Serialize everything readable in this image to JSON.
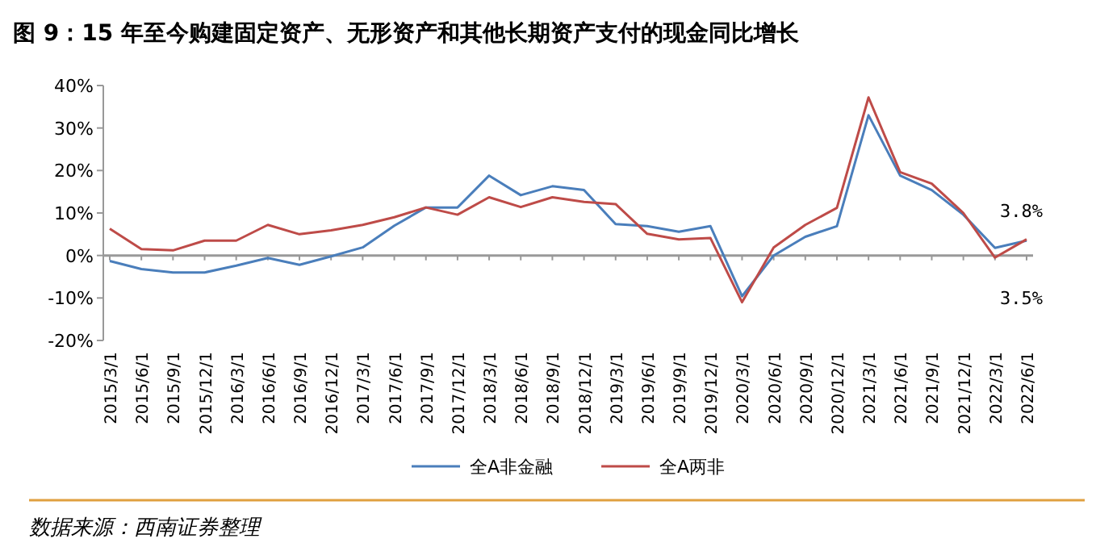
{
  "chart_data": {
    "type": "line",
    "title": "图 9：15 年至今购建固定资产、无形资产和其他长期资产支付的现金同比增长",
    "categories": [
      "2015/3/1",
      "2015/6/1",
      "2015/9/1",
      "2015/12/1",
      "2016/3/1",
      "2016/6/1",
      "2016/9/1",
      "2016/12/1",
      "2017/3/1",
      "2017/6/1",
      "2017/9/1",
      "2017/12/1",
      "2018/3/1",
      "2018/6/1",
      "2018/9/1",
      "2018/12/1",
      "2019/3/1",
      "2019/6/1",
      "2019/9/1",
      "2019/12/1",
      "2020/3/1",
      "2020/6/1",
      "2020/9/1",
      "2020/12/1",
      "2021/3/1",
      "2021/6/1",
      "2021/9/1",
      "2021/12/1",
      "2022/3/1",
      "2022/6/1"
    ],
    "series": [
      {
        "name": "全A非金融",
        "color": "#4a7ebb",
        "values": [
          -1.3,
          -3.2,
          -4,
          -4,
          -2.4,
          -0.6,
          -2.2,
          -0.2,
          1.9,
          7,
          11.3,
          11.3,
          18.8,
          14.2,
          16.3,
          15.4,
          7.4,
          6.9,
          5.6,
          6.9,
          -9.6,
          0,
          4.4,
          6.9,
          33,
          18.8,
          15.4,
          9.6,
          1.8,
          3.5
        ]
      },
      {
        "name": "全A两非",
        "color": "#be4b48",
        "values": [
          6.3,
          1.5,
          1.2,
          3.5,
          3.5,
          7.2,
          5,
          5.9,
          7.2,
          9,
          11.3,
          9.6,
          13.7,
          11.4,
          13.7,
          12.6,
          12.1,
          5.1,
          3.8,
          4.1,
          -11,
          1.9,
          7.2,
          11.2,
          37.2,
          19.6,
          16.9,
          10,
          -0.5,
          3.8
        ]
      }
    ],
    "ylim": [
      -20,
      40
    ],
    "yticks": [
      {
        "value": -20,
        "label": "-20%"
      },
      {
        "value": -10,
        "label": "-10%"
      },
      {
        "value": 0,
        "label": "0%"
      },
      {
        "value": 10,
        "label": "10%"
      },
      {
        "value": 20,
        "label": "20%"
      },
      {
        "value": 30,
        "label": "30%"
      },
      {
        "value": 40,
        "label": "40%"
      }
    ],
    "annotations": [
      "3.8%",
      "3.5%",
      "数据来源：西南证券整理"
    ],
    "legend": "bottom",
    "marker": "none",
    "line_style": "solid"
  }
}
